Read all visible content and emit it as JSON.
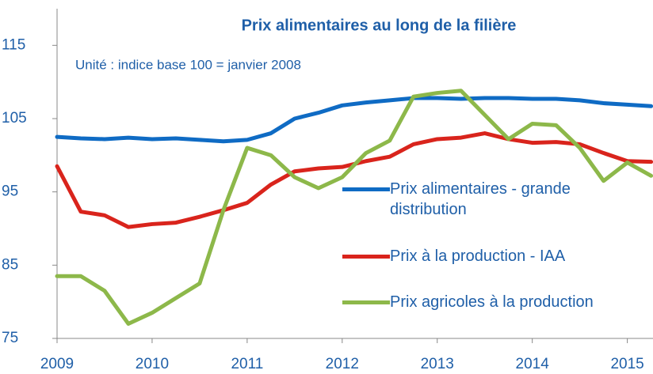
{
  "chart_data": {
    "type": "line",
    "title": "Prix alimentaires au long de la filière",
    "subtitle": "Unité : indice base 100 = janvier 2008",
    "x": [
      2009,
      2009.25,
      2009.5,
      2009.75,
      2010,
      2010.25,
      2010.5,
      2010.75,
      2011,
      2011.25,
      2011.5,
      2011.75,
      2012,
      2012.25,
      2012.5,
      2012.75,
      2013,
      2013.25,
      2013.5,
      2013.75,
      2014,
      2014.25,
      2014.5,
      2014.75,
      2015,
      2015.25
    ],
    "series": [
      {
        "name": "Prix alimentaires - grande distribution",
        "color": "#0f6bc4",
        "values": [
          102.5,
          102.3,
          102.2,
          102.4,
          102.2,
          102.3,
          102.1,
          101.9,
          102.1,
          103,
          105,
          105.8,
          106.8,
          107.2,
          107.5,
          107.8,
          107.8,
          107.7,
          107.8,
          107.8,
          107.7,
          107.7,
          107.5,
          107.1,
          106.9,
          106.7
        ]
      },
      {
        "name": "Prix à la production - IAA",
        "color": "#d9241c",
        "values": [
          98.5,
          92.3,
          91.8,
          90.2,
          90.6,
          90.8,
          91.6,
          92.5,
          93.5,
          96,
          97.8,
          98.2,
          98.4,
          99.2,
          99.8,
          101.5,
          102.2,
          102.4,
          103,
          102.2,
          101.7,
          101.8,
          101.5,
          100.3,
          99.2,
          99.1
        ]
      },
      {
        "name": "Prix agricoles à la production",
        "color": "#8db84a",
        "values": [
          83.5,
          83.5,
          81.5,
          77,
          78.5,
          80.5,
          82.5,
          92.5,
          101,
          100,
          97,
          95.5,
          97,
          100.3,
          102,
          108,
          108.5,
          108.8,
          105.5,
          102.2,
          104.3,
          104.1,
          101,
          96.5,
          99,
          97.2
        ]
      }
    ],
    "xlim": [
      2009,
      2015.27
    ],
    "ylim": [
      75,
      120
    ],
    "xticks": [
      2009,
      2010,
      2011,
      2012,
      2013,
      2014,
      2015
    ],
    "yticks": [
      75,
      85,
      95,
      105,
      115
    ]
  }
}
